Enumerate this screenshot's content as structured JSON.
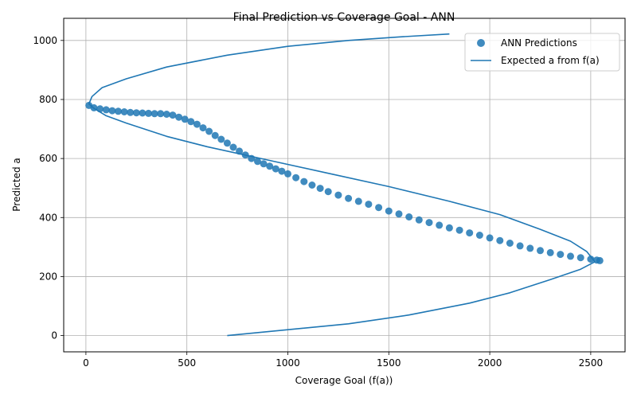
{
  "chart_data": {
    "type": "scatter",
    "title": "Final Prediction vs Coverage Goal - ANN",
    "xlabel": "Coverage Goal (f(a))",
    "ylabel": "Predicted a",
    "xlim": [
      -110,
      2670
    ],
    "ylim": [
      -55,
      1075
    ],
    "xticks": [
      0,
      500,
      1000,
      1500,
      2000,
      2500
    ],
    "yticks": [
      0,
      200,
      400,
      600,
      800,
      1000
    ],
    "grid": true,
    "legend_position": "top-right",
    "colors": {
      "series": "#1f77b4"
    },
    "series": [
      {
        "name": "ANN Predictions",
        "kind": "scatter",
        "points": [
          [
            15,
            780
          ],
          [
            40,
            772
          ],
          [
            70,
            768
          ],
          [
            100,
            765
          ],
          [
            130,
            762
          ],
          [
            160,
            760
          ],
          [
            190,
            758
          ],
          [
            220,
            756
          ],
          [
            250,
            755
          ],
          [
            280,
            754
          ],
          [
            310,
            753
          ],
          [
            340,
            752
          ],
          [
            370,
            752
          ],
          [
            400,
            750
          ],
          [
            430,
            747
          ],
          [
            460,
            740
          ],
          [
            490,
            733
          ],
          [
            520,
            725
          ],
          [
            550,
            716
          ],
          [
            580,
            704
          ],
          [
            610,
            692
          ],
          [
            640,
            678
          ],
          [
            670,
            665
          ],
          [
            700,
            652
          ],
          [
            730,
            638
          ],
          [
            760,
            625
          ],
          [
            790,
            612
          ],
          [
            820,
            600
          ],
          [
            850,
            590
          ],
          [
            880,
            582
          ],
          [
            910,
            574
          ],
          [
            940,
            565
          ],
          [
            970,
            557
          ],
          [
            1000,
            548
          ],
          [
            1040,
            535
          ],
          [
            1080,
            522
          ],
          [
            1120,
            510
          ],
          [
            1160,
            499
          ],
          [
            1200,
            488
          ],
          [
            1250,
            476
          ],
          [
            1300,
            465
          ],
          [
            1350,
            455
          ],
          [
            1400,
            445
          ],
          [
            1450,
            434
          ],
          [
            1500,
            422
          ],
          [
            1550,
            412
          ],
          [
            1600,
            402
          ],
          [
            1650,
            392
          ],
          [
            1700,
            383
          ],
          [
            1750,
            374
          ],
          [
            1800,
            365
          ],
          [
            1850,
            357
          ],
          [
            1900,
            348
          ],
          [
            1950,
            340
          ],
          [
            2000,
            331
          ],
          [
            2050,
            322
          ],
          [
            2100,
            313
          ],
          [
            2150,
            304
          ],
          [
            2200,
            296
          ],
          [
            2250,
            288
          ],
          [
            2300,
            281
          ],
          [
            2350,
            275
          ],
          [
            2400,
            269
          ],
          [
            2450,
            264
          ],
          [
            2500,
            259
          ],
          [
            2530,
            256
          ],
          [
            2545,
            254
          ]
        ]
      },
      {
        "name": "Expected a from f(a)",
        "kind": "line",
        "points": [
          [
            700,
            0
          ],
          [
            1000,
            20
          ],
          [
            1300,
            40
          ],
          [
            1600,
            70
          ],
          [
            1900,
            110
          ],
          [
            2100,
            145
          ],
          [
            2300,
            190
          ],
          [
            2450,
            225
          ],
          [
            2520,
            250
          ],
          [
            2480,
            285
          ],
          [
            2400,
            320
          ],
          [
            2250,
            360
          ],
          [
            2050,
            410
          ],
          [
            1800,
            455
          ],
          [
            1500,
            505
          ],
          [
            1200,
            550
          ],
          [
            900,
            595
          ],
          [
            600,
            640
          ],
          [
            400,
            675
          ],
          [
            200,
            720
          ],
          [
            100,
            745
          ],
          [
            40,
            770
          ],
          [
            15,
            785
          ],
          [
            30,
            810
          ],
          [
            80,
            840
          ],
          [
            200,
            870
          ],
          [
            400,
            910
          ],
          [
            700,
            950
          ],
          [
            1000,
            980
          ],
          [
            1300,
            1000
          ],
          [
            1550,
            1012
          ],
          [
            1800,
            1022
          ]
        ]
      }
    ]
  }
}
